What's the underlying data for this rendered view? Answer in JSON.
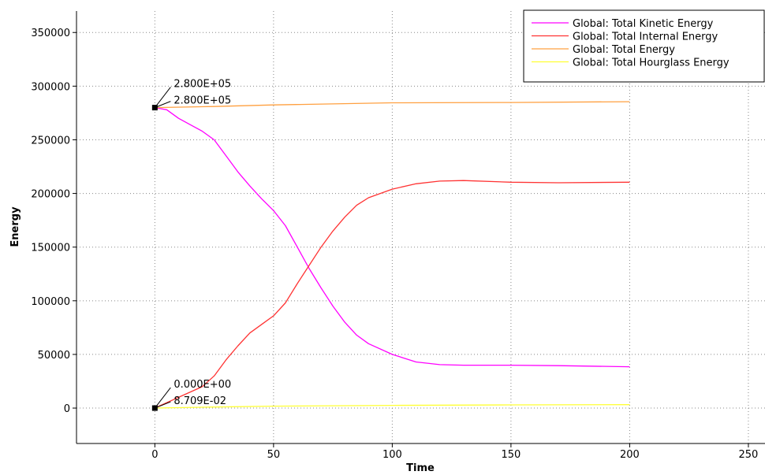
{
  "chart_data": {
    "type": "line",
    "xlabel": "Time",
    "ylabel": "Energy",
    "xlim": [
      -33,
      257
    ],
    "ylim": [
      -33000,
      370000
    ],
    "xticks": [
      0,
      50,
      100,
      150,
      200,
      250
    ],
    "yticks": [
      0,
      50000,
      100000,
      150000,
      200000,
      250000,
      300000,
      350000
    ],
    "grid": true,
    "legend_position": "top-right",
    "series": [
      {
        "name": "Global: Total Kinetic Energy",
        "color": "#ff00ff",
        "points": [
          [
            0,
            280000
          ],
          [
            5,
            278000
          ],
          [
            10,
            270000
          ],
          [
            15,
            264000
          ],
          [
            20,
            258000
          ],
          [
            25,
            250000
          ],
          [
            30,
            235000
          ],
          [
            35,
            220000
          ],
          [
            40,
            207000
          ],
          [
            45,
            195000
          ],
          [
            50,
            184000
          ],
          [
            55,
            170000
          ],
          [
            60,
            150000
          ],
          [
            65,
            130000
          ],
          [
            70,
            112000
          ],
          [
            75,
            95000
          ],
          [
            80,
            80000
          ],
          [
            85,
            68000
          ],
          [
            90,
            60000
          ],
          [
            100,
            50000
          ],
          [
            110,
            43000
          ],
          [
            120,
            40500
          ],
          [
            130,
            40000
          ],
          [
            150,
            40000
          ],
          [
            170,
            39500
          ],
          [
            200,
            38500
          ]
        ]
      },
      {
        "name": "Global: Total Internal Energy",
        "color": "#ff3333",
        "points": [
          [
            0,
            0
          ],
          [
            10,
            10000
          ],
          [
            20,
            20000
          ],
          [
            25,
            30000
          ],
          [
            30,
            45000
          ],
          [
            35,
            58000
          ],
          [
            40,
            70000
          ],
          [
            45,
            78000
          ],
          [
            50,
            86000
          ],
          [
            55,
            98000
          ],
          [
            60,
            116000
          ],
          [
            65,
            133000
          ],
          [
            70,
            150000
          ],
          [
            75,
            165000
          ],
          [
            80,
            178000
          ],
          [
            85,
            189000
          ],
          [
            90,
            196000
          ],
          [
            100,
            204000
          ],
          [
            110,
            209000
          ],
          [
            120,
            211500
          ],
          [
            130,
            212000
          ],
          [
            150,
            210500
          ],
          [
            170,
            210000
          ],
          [
            200,
            210500
          ]
        ]
      },
      {
        "name": "Global: Total Energy",
        "color": "#ffa040",
        "points": [
          [
            0,
            280000
          ],
          [
            25,
            281000
          ],
          [
            50,
            282500
          ],
          [
            100,
            284500
          ],
          [
            150,
            284800
          ],
          [
            200,
            285500
          ]
        ]
      },
      {
        "name": "Global: Total Hourglass Energy",
        "color": "#ffff33",
        "points": [
          [
            0,
            0
          ],
          [
            25,
            1000
          ],
          [
            50,
            1800
          ],
          [
            100,
            2500
          ],
          [
            150,
            3000
          ],
          [
            200,
            3200
          ]
        ]
      }
    ],
    "annotations": [
      {
        "text": "2.800E+05",
        "x": 0,
        "y": 280000
      },
      {
        "text": "2.800E+05",
        "x": 0,
        "y": 280000
      },
      {
        "text": "0.000E+00",
        "x": 0,
        "y": 0
      },
      {
        "text": "8.709E-02",
        "x": 0,
        "y": 0
      }
    ]
  }
}
